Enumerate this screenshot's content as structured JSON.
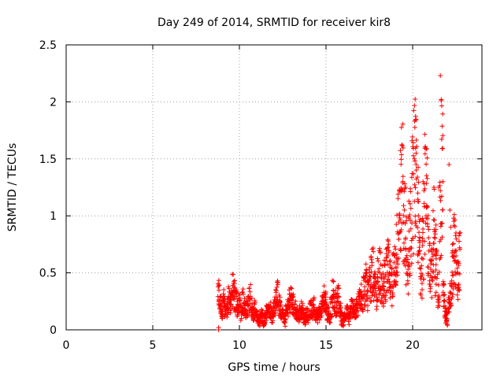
{
  "chart_data": {
    "type": "scatter",
    "title": "Day 249 of 2014, SRMTID for receiver kir8",
    "xlabel": "GPS time / hours",
    "ylabel": "SRMTID / TECUs",
    "xlim": [
      0,
      24
    ],
    "ylim": [
      0,
      2.5
    ],
    "xticks": [
      0,
      5,
      10,
      15,
      20
    ],
    "yticks": [
      0,
      0.5,
      1,
      1.5,
      2,
      2.5
    ],
    "xtick_labels": [
      "0",
      "5",
      "10",
      "15",
      "20"
    ],
    "ytick_labels": [
      "0",
      "0.5",
      "1",
      "1.5",
      "2",
      "2.5"
    ],
    "grid": true,
    "marker": "+",
    "series": [
      {
        "name": "kir8",
        "color": "#ff0000",
        "x": [
          8.8,
          8.9,
          9.0,
          9.1,
          9.2,
          9.3,
          9.4,
          9.5,
          9.6,
          9.7,
          9.8,
          9.9,
          10.0,
          10.1,
          10.2,
          10.3,
          10.4,
          10.5,
          10.6,
          10.7,
          10.8,
          10.9,
          11.0,
          11.1,
          11.2,
          11.3,
          11.4,
          11.5,
          11.6,
          11.7,
          11.8,
          11.9,
          12.0,
          12.1,
          12.2,
          12.3,
          12.4,
          12.5,
          12.6,
          12.7,
          12.8,
          12.9,
          13.0,
          13.1,
          13.2,
          13.3,
          13.4,
          13.5,
          13.6,
          13.7,
          13.8,
          13.9,
          14.0,
          14.1,
          14.2,
          14.3,
          14.4,
          14.5,
          14.6,
          14.7,
          14.8,
          14.9,
          15.0,
          15.1,
          15.2,
          15.3,
          15.4,
          15.5,
          15.6,
          15.7,
          15.8,
          15.9,
          16.0,
          16.1,
          16.2,
          16.3,
          16.4,
          16.5,
          16.6,
          16.7,
          16.8,
          16.9,
          17.0,
          17.1,
          17.2,
          17.3,
          17.4,
          17.5,
          17.6,
          17.7,
          17.8,
          17.9,
          18.0,
          18.1,
          18.2,
          18.3,
          18.4,
          18.5,
          18.6,
          18.7,
          18.8,
          18.9,
          19.0,
          19.1,
          19.2,
          19.3,
          19.4,
          19.5,
          19.6,
          19.7,
          19.8,
          19.9,
          20.0,
          20.1,
          20.2,
          20.3,
          20.4,
          20.5,
          20.6,
          20.7,
          20.8,
          20.9,
          21.0,
          21.1,
          21.2,
          21.3,
          21.4,
          21.5,
          21.6,
          21.7,
          21.8,
          21.9,
          22.0,
          22.1,
          22.2,
          22.3,
          22.4,
          22.5,
          22.6,
          22.7
        ],
        "y": [
          0.3,
          0.22,
          0.18,
          0.25,
          0.15,
          0.2,
          0.28,
          0.22,
          0.35,
          0.3,
          0.25,
          0.2,
          0.22,
          0.15,
          0.25,
          0.2,
          0.18,
          0.22,
          0.28,
          0.2,
          0.15,
          0.18,
          0.12,
          0.1,
          0.08,
          0.12,
          0.05,
          0.1,
          0.15,
          0.2,
          0.18,
          0.12,
          0.2,
          0.25,
          0.3,
          0.22,
          0.18,
          0.12,
          0.08,
          0.15,
          0.2,
          0.25,
          0.28,
          0.22,
          0.18,
          0.15,
          0.12,
          0.15,
          0.18,
          0.12,
          0.1,
          0.15,
          0.12,
          0.18,
          0.15,
          0.2,
          0.15,
          0.12,
          0.15,
          0.18,
          0.22,
          0.28,
          0.25,
          0.15,
          0.12,
          0.2,
          0.3,
          0.25,
          0.22,
          0.28,
          0.18,
          0.1,
          0.08,
          0.12,
          0.15,
          0.1,
          0.15,
          0.2,
          0.18,
          0.15,
          0.2,
          0.25,
          0.3,
          0.28,
          0.35,
          0.4,
          0.3,
          0.38,
          0.45,
          0.5,
          0.35,
          0.3,
          0.45,
          0.55,
          0.4,
          0.35,
          0.45,
          0.5,
          0.55,
          0.42,
          0.38,
          0.5,
          0.6,
          0.8,
          0.9,
          1.1,
          1.3,
          0.9,
          0.7,
          0.5,
          0.8,
          0.9,
          1.2,
          1.45,
          1.3,
          1.0,
          0.7,
          0.5,
          0.8,
          1.2,
          1.1,
          0.8,
          0.6,
          0.5,
          0.9,
          0.7,
          0.5,
          0.35,
          0.9,
          1.4,
          0.3,
          0.15,
          0.1,
          0.2,
          0.3,
          0.5,
          0.7,
          0.6,
          0.45,
          0.6
        ],
        "extra_x": [
          8.8,
          8.8,
          19.3,
          19.6,
          20.1,
          20.2,
          20.2,
          20.3,
          20.6,
          20.9,
          21.0,
          21.3,
          21.5,
          21.6,
          21.65,
          21.65,
          21.7,
          21.75,
          21.8,
          21.85,
          21.9,
          21.95,
          22.0,
          22.1,
          22.15,
          22.2,
          22.3,
          22.4,
          22.5,
          22.6
        ],
        "extra_y": [
          0.0,
          0.02,
          0.7,
          1.25,
          1.5,
          1.55,
          1.45,
          1.2,
          1.3,
          0.55,
          0.4,
          0.3,
          1.25,
          2.23,
          2.01,
          2.02,
          1.59,
          1.3,
          0.25,
          0.12,
          0.06,
          0.08,
          0.18,
          1.45,
          1.05,
          0.9,
          0.75,
          0.4,
          0.85,
          0.5
        ]
      }
    ]
  }
}
